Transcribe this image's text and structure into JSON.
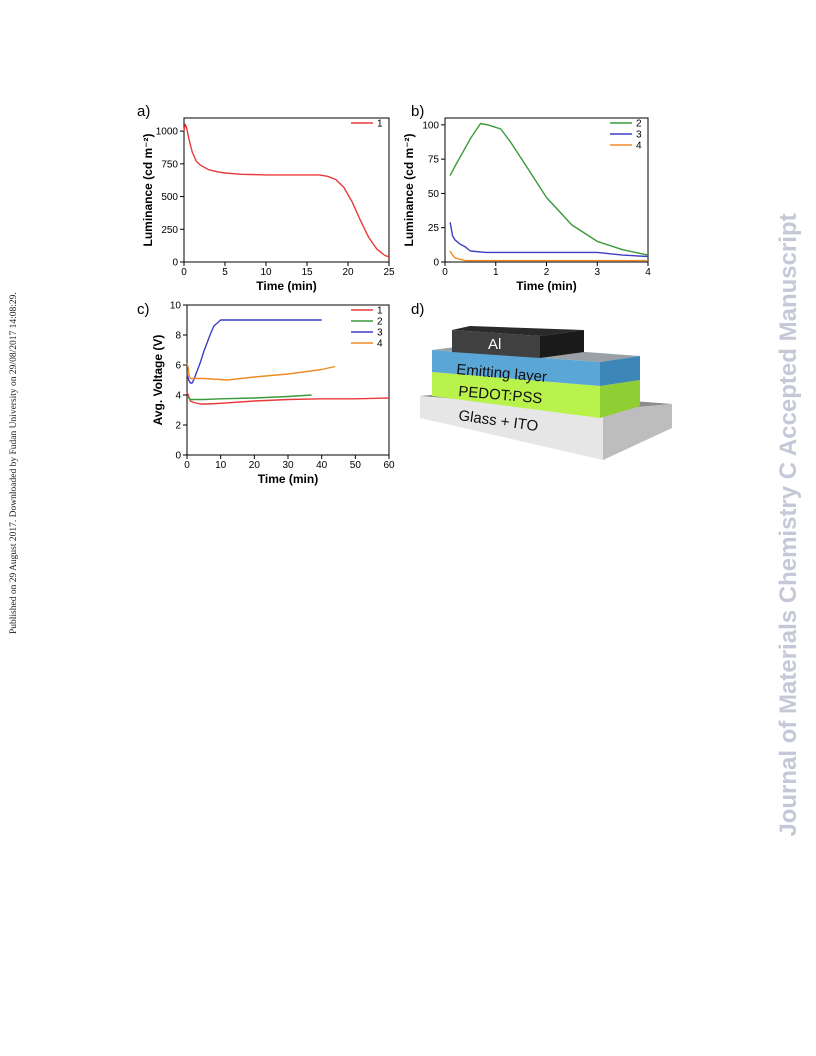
{
  "page": {
    "side_stamp": "Published on 29 August 2017. Downloaded by Fudan University on 29/08/2017 14:08:29.",
    "watermark": "Journal of Materials Chemistry C Accepted Manuscript"
  },
  "panels": {
    "a": {
      "label": "a)"
    },
    "b": {
      "label": "b)"
    },
    "c": {
      "label": "c)"
    },
    "d": {
      "label": "d)"
    }
  },
  "colors": {
    "s1": "#e8393a",
    "s2": "#3a9a3a",
    "s3": "#3c3fc4",
    "s4": "#f08a24"
  },
  "device_layers": {
    "top": "Al",
    "emitting": "Emitting layer",
    "pedot": "PEDOT:PSS",
    "substrate": "Glass + ITO"
  },
  "chart_data": [
    {
      "id": "a",
      "type": "line",
      "xlabel": "Time (min)",
      "ylabel": "Luminance (cd m⁻²)",
      "xlim": [
        0,
        25
      ],
      "ylim": [
        0,
        1100
      ],
      "xticks": [
        0,
        5,
        10,
        15,
        20,
        25
      ],
      "yticks": [
        0,
        250,
        500,
        750,
        1000
      ],
      "legend_position": "top-right",
      "series": [
        {
          "name": "1",
          "color": "#e8393a",
          "x": [
            0,
            0.15,
            0.3,
            0.6,
            1,
            1.5,
            2,
            3,
            4,
            5,
            7,
            10,
            14,
            16.5,
            17.5,
            18.5,
            19.5,
            20.5,
            21.5,
            22.5,
            23.5,
            24.5,
            25
          ],
          "y": [
            1000,
            1050,
            1030,
            940,
            840,
            770,
            740,
            705,
            690,
            680,
            670,
            665,
            665,
            665,
            655,
            630,
            570,
            460,
            320,
            190,
            100,
            50,
            40
          ]
        }
      ]
    },
    {
      "id": "b",
      "type": "line",
      "xlabel": "Time (min)",
      "ylabel": "Luminance (cd m⁻²)",
      "xlim": [
        0,
        4
      ],
      "ylim": [
        0,
        105
      ],
      "xticks": [
        0,
        1,
        2,
        3,
        4
      ],
      "yticks": [
        0,
        25,
        50,
        75,
        100
      ],
      "legend_position": "top-right",
      "series": [
        {
          "name": "2",
          "color": "#3a9a3a",
          "x": [
            0.1,
            0.2,
            0.35,
            0.5,
            0.7,
            0.85,
            1.1,
            1.3,
            1.6,
            2,
            2.5,
            3,
            3.5,
            4
          ],
          "y": [
            63,
            70,
            80,
            90,
            101,
            100,
            97,
            87,
            70,
            47,
            27,
            15,
            9,
            5
          ]
        },
        {
          "name": "3",
          "color": "#3c3fc4",
          "x": [
            0.1,
            0.15,
            0.2,
            0.3,
            0.4,
            0.5,
            0.8,
            1,
            2,
            3,
            3.5,
            4
          ],
          "y": [
            29,
            19,
            16,
            13,
            11,
            8,
            7,
            7,
            7,
            7,
            5,
            4
          ]
        },
        {
          "name": "4",
          "color": "#f08a24",
          "x": [
            0.1,
            0.15,
            0.2,
            0.3,
            0.4,
            0.6,
            1,
            2,
            3,
            4
          ],
          "y": [
            8,
            5,
            3,
            2,
            1,
            1,
            1,
            1,
            1,
            1
          ]
        }
      ]
    },
    {
      "id": "c",
      "type": "line",
      "xlabel": "Time (min)",
      "ylabel": "Avg. Voltage (V)",
      "xlim": [
        0,
        60
      ],
      "ylim": [
        0,
        10
      ],
      "xticks": [
        0,
        10,
        20,
        30,
        40,
        50,
        60
      ],
      "yticks": [
        0,
        2,
        4,
        6,
        8,
        10
      ],
      "legend_position": "top-right",
      "series": [
        {
          "name": "1",
          "color": "#e8393a",
          "x": [
            0,
            0.5,
            1,
            2,
            4,
            6,
            10,
            20,
            30,
            40,
            50,
            60
          ],
          "y": [
            4.2,
            3.9,
            3.6,
            3.5,
            3.4,
            3.4,
            3.45,
            3.6,
            3.7,
            3.75,
            3.75,
            3.8
          ]
        },
        {
          "name": "2",
          "color": "#3a9a3a",
          "x": [
            0,
            0.5,
            1,
            2,
            5,
            10,
            20,
            30,
            37
          ],
          "y": [
            3.9,
            3.8,
            3.7,
            3.7,
            3.7,
            3.75,
            3.8,
            3.9,
            4.0
          ]
        },
        {
          "name": "3",
          "color": "#3c3fc4",
          "x": [
            0,
            0.5,
            1,
            1.5,
            2,
            3,
            4,
            5,
            6,
            7,
            8,
            10,
            20,
            30,
            40
          ],
          "y": [
            5.4,
            5.0,
            4.8,
            4.8,
            5.0,
            5.6,
            6.2,
            6.9,
            7.5,
            8.1,
            8.6,
            9.0,
            9.0,
            9.0,
            9.0
          ]
        },
        {
          "name": "4",
          "color": "#f08a24",
          "x": [
            0,
            0.3,
            0.6,
            1,
            2,
            5,
            12,
            20,
            30,
            40,
            44
          ],
          "y": [
            6.1,
            5.9,
            5.3,
            5.1,
            5.1,
            5.1,
            5.0,
            5.2,
            5.4,
            5.7,
            5.9
          ]
        }
      ]
    }
  ]
}
